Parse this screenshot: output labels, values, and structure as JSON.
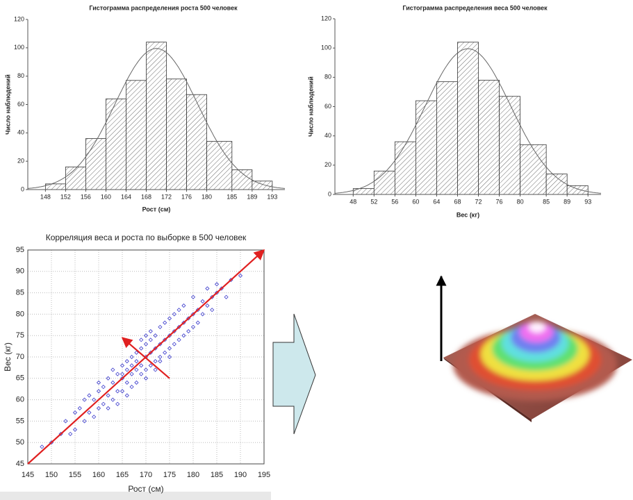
{
  "chart_data": [
    {
      "type": "histogram",
      "title": "Гистограмма распределения роста 500 человек",
      "xlabel": "Рост (см)",
      "ylabel": "Число наблюдений",
      "bins": [
        148,
        152,
        156,
        160,
        164,
        168,
        172,
        176,
        180,
        185,
        189,
        193
      ],
      "counts": [
        4,
        16,
        36,
        64,
        77,
        104,
        78,
        67,
        34,
        14,
        6
      ],
      "xlim": [
        144.5,
        195.5
      ],
      "xticks": [
        148,
        152,
        156,
        160,
        164,
        168,
        172,
        176,
        180,
        185,
        189,
        193
      ],
      "ylim": [
        0,
        120
      ],
      "yticks": [
        0,
        20,
        40,
        60,
        80,
        100,
        120
      ],
      "normal_fit": {
        "mean": 170,
        "sd": 8.2
      },
      "color": "#333333",
      "grid": false
    },
    {
      "type": "histogram",
      "title": "Гистограмма распределения веса 500 человек",
      "xlabel": "Вес (кг)",
      "ylabel": "Число наблюдений",
      "bins": [
        48,
        52,
        56,
        60,
        64,
        68,
        72,
        76,
        80,
        85,
        89,
        93
      ],
      "counts": [
        4,
        16,
        36,
        64,
        77,
        104,
        78,
        67,
        34,
        14,
        6
      ],
      "xlim": [
        44.5,
        95.5
      ],
      "xticks": [
        48,
        52,
        56,
        60,
        64,
        68,
        72,
        76,
        80,
        85,
        89,
        93
      ],
      "ylim": [
        0,
        120
      ],
      "yticks": [
        0,
        20,
        40,
        60,
        80,
        100,
        120
      ],
      "normal_fit": {
        "mean": 70,
        "sd": 8.2
      },
      "color": "#333333",
      "grid": false
    },
    {
      "type": "scatter",
      "title": "Корреляция веса и роста по выборке в 500 человек",
      "xlabel": "Рост (см)",
      "ylabel": "Вес (кг)",
      "x": [
        148,
        150,
        152,
        153,
        154,
        155,
        155,
        156,
        157,
        157,
        158,
        158,
        159,
        159,
        160,
        160,
        160,
        161,
        161,
        162,
        162,
        162,
        163,
        163,
        163,
        164,
        164,
        164,
        165,
        165,
        165,
        165,
        166,
        166,
        166,
        166,
        167,
        167,
        167,
        167,
        168,
        168,
        168,
        168,
        169,
        169,
        169,
        169,
        170,
        170,
        170,
        170,
        170,
        171,
        171,
        171,
        171,
        172,
        172,
        172,
        172,
        173,
        173,
        173,
        173,
        174,
        174,
        174,
        175,
        175,
        175,
        175,
        176,
        176,
        176,
        177,
        177,
        177,
        178,
        178,
        178,
        179,
        179,
        180,
        180,
        180,
        181,
        181,
        182,
        182,
        183,
        183,
        184,
        184,
        185,
        185,
        186,
        187,
        188,
        190
      ],
      "y": [
        49,
        50,
        52,
        55,
        52,
        57,
        53,
        58,
        55,
        60,
        57,
        61,
        56,
        60,
        62,
        58,
        64,
        59,
        63,
        61,
        65,
        58,
        64,
        60,
        67,
        62,
        66,
        59,
        65,
        68,
        62,
        66,
        64,
        69,
        61,
        67,
        66,
        70,
        63,
        68,
        67,
        71,
        64,
        69,
        68,
        72,
        66,
        74,
        70,
        67,
        73,
        75,
        65,
        71,
        68,
        74,
        76,
        72,
        69,
        75,
        67,
        73,
        70,
        77,
        69,
        74,
        71,
        78,
        75,
        72,
        79,
        70,
        76,
        73,
        80,
        77,
        74,
        81,
        78,
        75,
        82,
        79,
        76,
        80,
        77,
        84,
        81,
        78,
        83,
        80,
        82,
        86,
        84,
        81,
        85,
        87,
        86,
        84,
        88,
        89
      ],
      "color": "#3a3acc",
      "xlim": [
        145,
        195
      ],
      "xticks": [
        145,
        150,
        155,
        160,
        165,
        170,
        175,
        180,
        185,
        190,
        195
      ],
      "ylim": [
        45,
        95
      ],
      "yticks": [
        45,
        50,
        55,
        60,
        65,
        70,
        75,
        80,
        85,
        90,
        95
      ],
      "grid": true,
      "arrows": [
        {
          "x": [
            145,
            195
          ],
          "y": [
            45,
            95
          ],
          "color": "#e02020"
        },
        {
          "x": [
            175,
            165
          ],
          "y": [
            65,
            74.5
          ],
          "color": "#e02020"
        }
      ]
    }
  ]
}
